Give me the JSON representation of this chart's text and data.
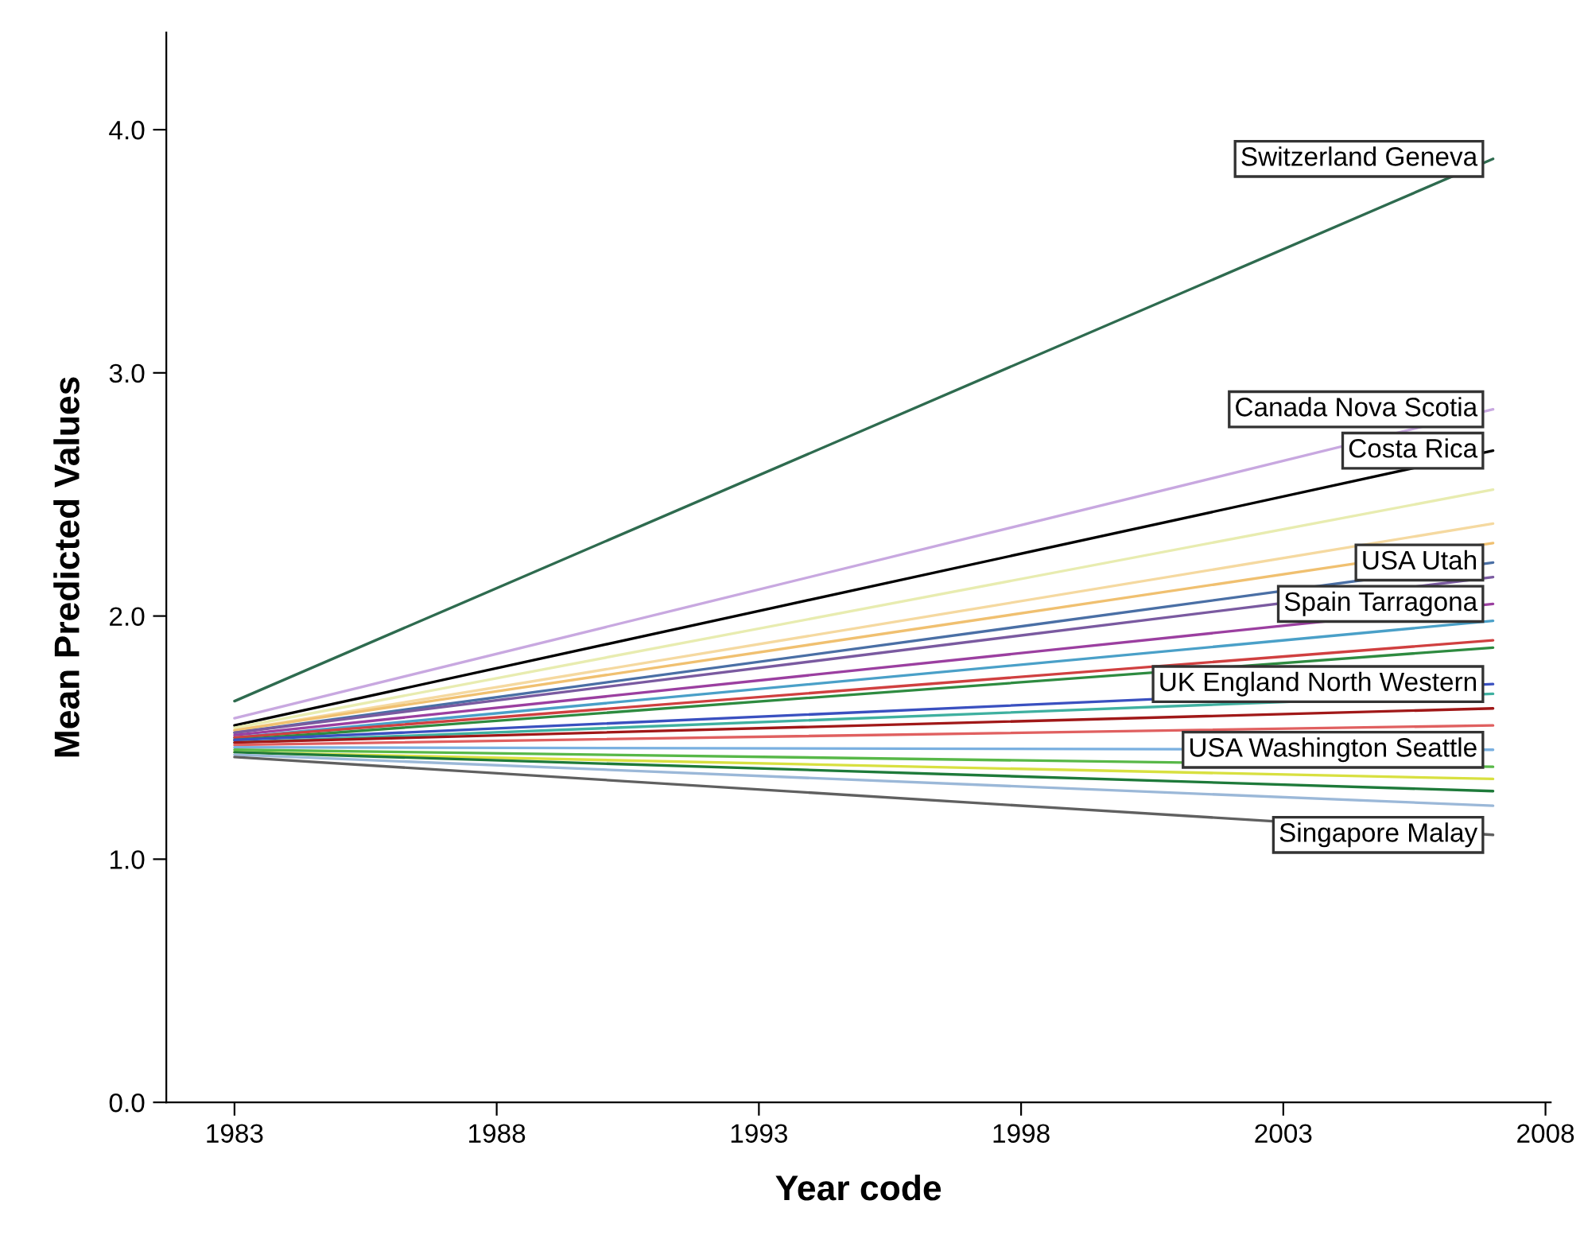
{
  "chart_data": {
    "type": "line",
    "xlabel": "Year code",
    "ylabel": "Mean Predicted Values",
    "x": [
      1983,
      2007
    ],
    "xlim": [
      1981.7,
      2008.1
    ],
    "ylim": [
      0,
      4.4
    ],
    "xticks": [
      1983,
      1988,
      1993,
      1998,
      2003,
      2008
    ],
    "yticks": [
      {
        "value": 0,
        "label": "0.0"
      },
      {
        "value": 1,
        "label": "1.0"
      },
      {
        "value": 2,
        "label": "2.0"
      },
      {
        "value": 3,
        "label": "3.0"
      },
      {
        "value": 4,
        "label": "4.0"
      }
    ],
    "grid": false,
    "legend": false,
    "marker": "none",
    "line_style": "solid",
    "series": [
      {
        "name": "Switzerland Geneva",
        "color": "#2e6b4f",
        "values": [
          1.65,
          3.88
        ]
      },
      {
        "name": "Canada Nova Scotia",
        "color": "#c8a8e0",
        "values": [
          1.58,
          2.85
        ]
      },
      {
        "name": "Costa Rica",
        "color": "#000000",
        "values": [
          1.55,
          2.68
        ]
      },
      {
        "color": "#e8ecb0",
        "values": [
          1.54,
          2.52
        ]
      },
      {
        "color": "#f5d9a0",
        "values": [
          1.53,
          2.38
        ]
      },
      {
        "color": "#f0c070",
        "values": [
          1.53,
          2.3
        ]
      },
      {
        "name": "USA Utah",
        "color": "#4a6fa5",
        "values": [
          1.52,
          2.22
        ]
      },
      {
        "color": "#7a5aa0",
        "values": [
          1.52,
          2.16
        ]
      },
      {
        "name": "Spain Tarragona",
        "color": "#9b3fa0",
        "values": [
          1.51,
          2.05
        ]
      },
      {
        "color": "#4aa0c8",
        "values": [
          1.5,
          1.98
        ]
      },
      {
        "color": "#d04040",
        "values": [
          1.5,
          1.9
        ]
      },
      {
        "color": "#2e8b40",
        "values": [
          1.49,
          1.87
        ]
      },
      {
        "name": "UK England North Western",
        "color": "#3a50c0",
        "values": [
          1.49,
          1.72
        ]
      },
      {
        "color": "#3fb0a0",
        "values": [
          1.48,
          1.68
        ]
      },
      {
        "color": "#a01818",
        "values": [
          1.48,
          1.62
        ]
      },
      {
        "color": "#e06060",
        "values": [
          1.47,
          1.55
        ]
      },
      {
        "name": "USA Washington Seattle",
        "color": "#7ab0e0",
        "values": [
          1.46,
          1.45
        ]
      },
      {
        "color": "#58b848",
        "values": [
          1.45,
          1.38
        ]
      },
      {
        "color": "#d8e040",
        "values": [
          1.44,
          1.33
        ]
      },
      {
        "color": "#1e7a3a",
        "values": [
          1.44,
          1.28
        ]
      },
      {
        "color": "#9bb8d8",
        "values": [
          1.43,
          1.22
        ]
      },
      {
        "name": "Singapore Malay",
        "color": "#606060",
        "values": [
          1.42,
          1.1
        ]
      }
    ]
  }
}
